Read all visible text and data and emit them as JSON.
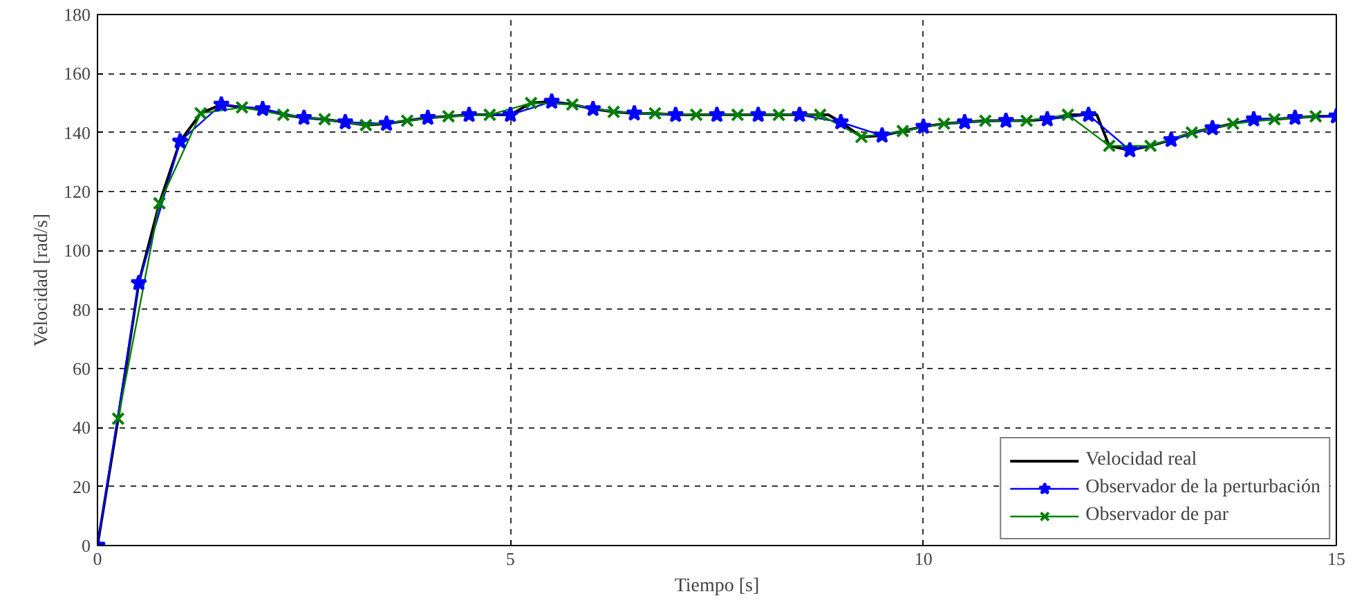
{
  "chart_data": {
    "type": "line",
    "xlabel": "Tiempo [s]",
    "ylabel": "Velocidad [rad/s]",
    "xlim": [
      0,
      15
    ],
    "ylim": [
      0,
      180
    ],
    "xticks": [
      0,
      5,
      10,
      15
    ],
    "yticks": [
      0,
      20,
      40,
      60,
      80,
      100,
      120,
      140,
      160,
      180
    ],
    "grid": true,
    "legend": "bottom right",
    "series": [
      {
        "name": "Velocidad real",
        "color": "#000000",
        "marker": "none",
        "x": [
          0,
          0.25,
          0.5,
          0.75,
          1.0,
          1.25,
          1.5,
          1.75,
          2.0,
          2.25,
          2.5,
          2.75,
          3.0,
          3.25,
          3.5,
          3.75,
          4.0,
          4.25,
          4.5,
          4.75,
          5.0,
          5.25,
          5.5,
          5.75,
          6.0,
          6.25,
          6.5,
          6.75,
          7.0,
          7.25,
          7.5,
          7.75,
          8.0,
          8.25,
          8.5,
          8.85,
          9.0,
          9.25,
          9.5,
          9.75,
          10.0,
          10.25,
          10.5,
          10.75,
          11.0,
          11.25,
          11.5,
          11.75,
          12.1,
          12.25,
          12.5,
          12.75,
          13.0,
          13.25,
          13.5,
          13.75,
          14.0,
          14.25,
          14.5,
          14.75,
          15.0
        ],
        "values": [
          0,
          43,
          89,
          116,
          137,
          146.5,
          149.5,
          148.5,
          148,
          146,
          145,
          144.5,
          143.5,
          142.5,
          143,
          144,
          145,
          145.5,
          146,
          146,
          146,
          150,
          150.5,
          149.5,
          148,
          147,
          146.5,
          146.5,
          146,
          146,
          146,
          146,
          146,
          146,
          146,
          146,
          143.5,
          138.5,
          139,
          140.5,
          142,
          143,
          143.5,
          144,
          144,
          144,
          144.5,
          146,
          146,
          135.5,
          134,
          135.5,
          137.5,
          140,
          141.5,
          143,
          144.5,
          144.5,
          145,
          145.5,
          145.5
        ]
      },
      {
        "name": "Observador de la perturbación",
        "color": "#0000ff",
        "marker": "star",
        "x": [
          0,
          0.5,
          1.0,
          1.5,
          2.0,
          2.5,
          3.0,
          3.5,
          4.0,
          4.5,
          5.0,
          5.5,
          6.0,
          6.5,
          7.0,
          7.5,
          8.0,
          8.5,
          9.0,
          9.5,
          10.0,
          10.5,
          11.0,
          11.5,
          12.0,
          12.5,
          13.0,
          13.5,
          14.0,
          14.5,
          15.0
        ],
        "values": [
          0,
          89,
          137,
          149.5,
          148,
          145,
          143.5,
          143,
          145,
          146,
          146,
          150.5,
          148,
          146.5,
          146,
          146,
          146,
          146,
          143.5,
          139,
          142,
          143.5,
          144,
          144.5,
          146,
          134,
          137.5,
          141.5,
          144.5,
          145,
          145.5
        ]
      },
      {
        "name": "Observador de par",
        "color": "#008000",
        "marker": "cross",
        "x": [
          0.25,
          0.75,
          1.25,
          1.75,
          2.25,
          2.75,
          3.25,
          3.75,
          4.25,
          4.75,
          5.25,
          5.75,
          6.25,
          6.75,
          7.25,
          7.75,
          8.25,
          8.75,
          9.25,
          9.75,
          10.25,
          10.75,
          11.25,
          11.75,
          12.25,
          12.75,
          13.25,
          13.75,
          14.25,
          14.75
        ],
        "values": [
          43,
          116,
          146.5,
          148.5,
          146,
          144.5,
          142.5,
          144,
          145.5,
          146,
          150,
          149.5,
          147,
          146.5,
          146,
          146,
          146,
          146,
          138.5,
          140.5,
          143,
          144,
          144,
          146,
          135.5,
          135.5,
          140,
          143,
          144.5,
          145.5
        ]
      }
    ]
  }
}
